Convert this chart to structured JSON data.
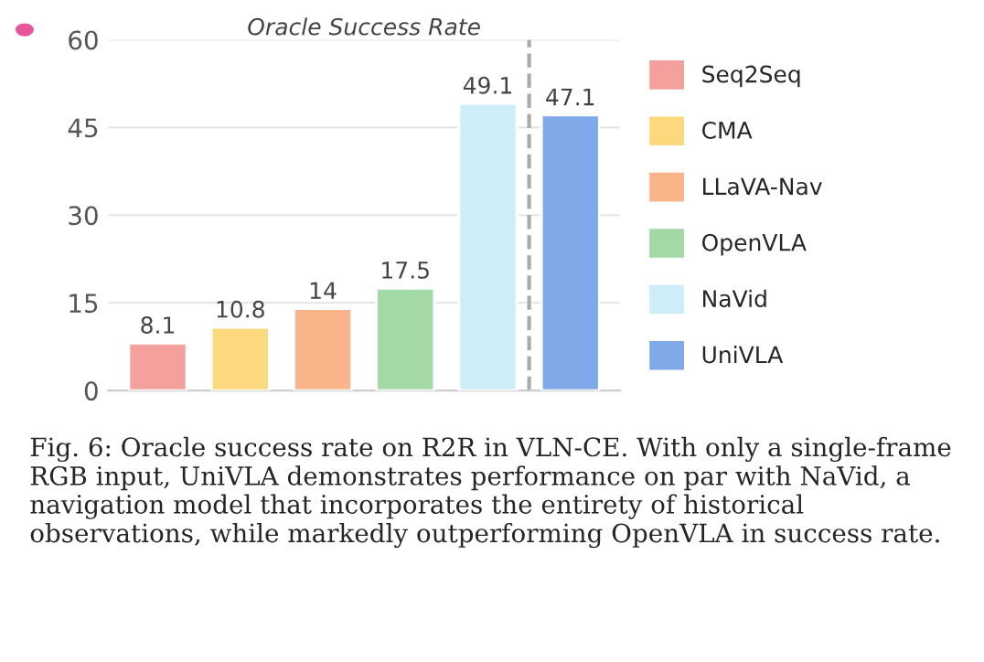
{
  "chart_data": {
    "type": "bar",
    "title": "Oracle Success Rate",
    "categories": [
      null,
      null,
      null,
      null,
      null,
      null
    ],
    "series": [
      {
        "name": "Seq2Seq",
        "color": "#f4a09c",
        "values": [
          8.1,
          null,
          null,
          null,
          null,
          null
        ]
      },
      {
        "name": "CMA",
        "color": "#fcd97d",
        "values": [
          null,
          10.8,
          null,
          null,
          null,
          null
        ]
      },
      {
        "name": "LLaVA-Nav",
        "color": "#f9b48a",
        "values": [
          null,
          null,
          14,
          null,
          null,
          null
        ]
      },
      {
        "name": "OpenVLA",
        "color": "#a3d9a5",
        "values": [
          null,
          null,
          null,
          17.5,
          null,
          null
        ]
      },
      {
        "name": "NaVid",
        "color": "#cdeef8",
        "values": [
          null,
          null,
          null,
          null,
          49.1,
          null
        ]
      },
      {
        "name": "UniVLA",
        "color": "#7fa9e8",
        "values": [
          null,
          null,
          null,
          null,
          null,
          47.1
        ]
      }
    ],
    "ylim": [
      0,
      60
    ],
    "yticks": [
      0,
      15,
      30,
      45,
      60
    ],
    "grid": "y",
    "data_labels": true,
    "legend": "right",
    "tick_labels": "y",
    "annotations": [
      "Fig. 6: Oracle success rate on R2R in VLN-CE. With only a single-frame RGB input, UniVLA demonstrates performance on par with NaVid, a navigation model that incorporates the entirety of historical observations, while markedly outperforming OpenVLA in success rate."
    ]
  }
}
